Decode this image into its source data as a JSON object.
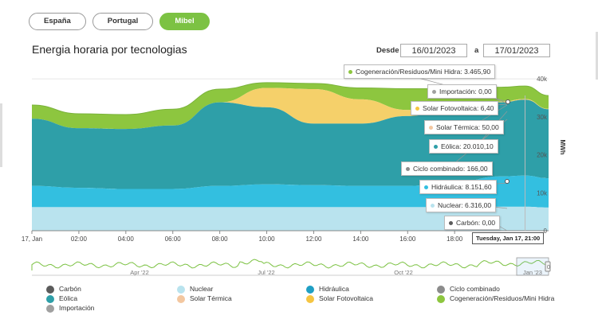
{
  "tabs": [
    {
      "label": "España",
      "active": false
    },
    {
      "label": "Portugal",
      "active": false
    },
    {
      "label": "Mibel",
      "active": true
    }
  ],
  "title": "Energia horaria por tecnologias",
  "dates": {
    "desde_label": "Desde",
    "from": "16/01/2023",
    "a_label": "a",
    "to": "17/01/2023"
  },
  "chart_data": {
    "type": "area",
    "x": [
      "17, Jan",
      "02:00",
      "04:00",
      "06:00",
      "08:00",
      "10:00",
      "12:00",
      "14:00",
      "16:00",
      "18:00"
    ],
    "y_ticks": [
      "0",
      "10k",
      "20k",
      "30k",
      "40k"
    ],
    "ylabel": "MWh",
    "ylim": [
      0,
      44000
    ],
    "stacked": true,
    "series": [
      {
        "name": "Carbón",
        "color": "#5b5b5b"
      },
      {
        "name": "Nuclear",
        "color": "#b9e3ee"
      },
      {
        "name": "Hidráulica",
        "color": "#33bfe0"
      },
      {
        "name": "Ciclo combinado",
        "color": "#8c8c8c"
      },
      {
        "name": "Eólica",
        "color": "#2e9fa8"
      },
      {
        "name": "Solar Térmica",
        "color": "#f3c7a0"
      },
      {
        "name": "Solar Fotovoltaica",
        "color": "#f5d06a"
      },
      {
        "name": "Importación",
        "color": "#a0a0a0"
      },
      {
        "name": "Cogeneración/Residuos/Mini Hidra",
        "color": "#8dc63f"
      }
    ],
    "hours": [
      0,
      2,
      4,
      6,
      8,
      10,
      12,
      14,
      16,
      18,
      20,
      21,
      22
    ],
    "stack_tops": {
      "nuclear": [
        6200,
        6200,
        6200,
        6200,
        6200,
        6200,
        6200,
        6200,
        6200,
        6200,
        6300,
        6316,
        6100
      ],
      "hidraulica": [
        11800,
        11300,
        11000,
        11000,
        11800,
        12200,
        12000,
        11800,
        11800,
        12800,
        14300,
        14500,
        13800
      ],
      "eolica": [
        29500,
        27000,
        26800,
        27700,
        33800,
        32500,
        28200,
        28200,
        30200,
        32200,
        33800,
        34500,
        32000
      ],
      "solar_fv": [
        29500,
        27000,
        26800,
        27700,
        33800,
        37600,
        37300,
        34600,
        31800,
        32200,
        34000,
        34700,
        32100
      ],
      "cogeneracion": [
        33100,
        30800,
        30600,
        32000,
        37300,
        39000,
        38800,
        37600,
        37400,
        37400,
        37800,
        38100,
        35600
      ]
    },
    "navigator_ticks": [
      "Apr '22",
      "Jul '22",
      "Oct '22",
      "Jan '23"
    ],
    "navigator_max": "0",
    "tooltip_time": "Tuesday, Jan 17, 21:00",
    "tooltip": [
      {
        "label": "Cogeneración/Residuos/Mini Hidra",
        "value": "3.465,90",
        "color": "#8dc63f"
      },
      {
        "label": "Importación",
        "value": "0,00",
        "color": "#a0a0a0"
      },
      {
        "label": "Solar Fotovoltaica",
        "value": "6,40",
        "color": "#f5c542"
      },
      {
        "label": "Solar Térmica",
        "value": "50,00",
        "color": "#f3c7a0"
      },
      {
        "label": "Eólica",
        "value": "20.010,10",
        "color": "#2e9fa8"
      },
      {
        "label": "Ciclo combinado",
        "value": "166,00",
        "color": "#8c8c8c"
      },
      {
        "label": "Hidráulica",
        "value": "8.151,60",
        "color": "#33bfe0"
      },
      {
        "label": "Nuclear",
        "value": "6.316,00",
        "color": "#b9e3ee"
      },
      {
        "label": "Carbón",
        "value": "0,00",
        "color": "#5b5b5b"
      }
    ]
  }
}
